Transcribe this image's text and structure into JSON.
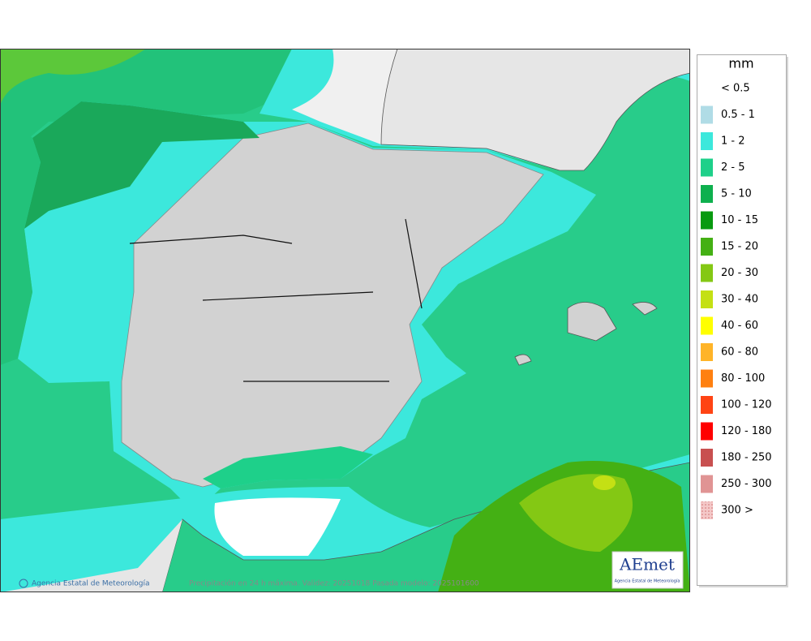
{
  "map": {
    "credit": "Agencia Estatal de Meteorología",
    "caption": "Precipitación en 24 h máxima. Validez: 20251018 Pasada modelo: 2025101600",
    "logo": {
      "name": "AEmet",
      "subtitle": "Agencia Estatal de Meteorología"
    }
  },
  "legend": {
    "title": "mm",
    "items": [
      {
        "label": "< 0.5"
      },
      {
        "label": "0.5 - 1",
        "color": "#b0dce6"
      },
      {
        "label": "1 - 2",
        "color": "#3ce8dc"
      },
      {
        "label": "2 - 5",
        "color": "#1ed08a"
      },
      {
        "label": "5 - 10",
        "color": "#0eb04e"
      },
      {
        "label": "10 - 15",
        "color": "#089a10"
      },
      {
        "label": "15 - 20",
        "color": "#44b014"
      },
      {
        "label": "20 - 30",
        "color": "#84c814"
      },
      {
        "label": "30 - 40",
        "color": "#c4e014"
      },
      {
        "label": "40 - 60",
        "color": "#ffff00"
      },
      {
        "label": "60 - 80",
        "color": "#ffb428"
      },
      {
        "label": "80 - 100",
        "color": "#ff8010"
      },
      {
        "label": "100 - 120",
        "color": "#ff4414"
      },
      {
        "label": "120 - 180",
        "color": "#ff0000"
      },
      {
        "label": "180 - 250",
        "color": "#c85050"
      },
      {
        "label": "250 - 300",
        "color": "#e09494"
      },
      {
        "label": "300 >",
        "color": "#f4c8c8"
      }
    ]
  }
}
